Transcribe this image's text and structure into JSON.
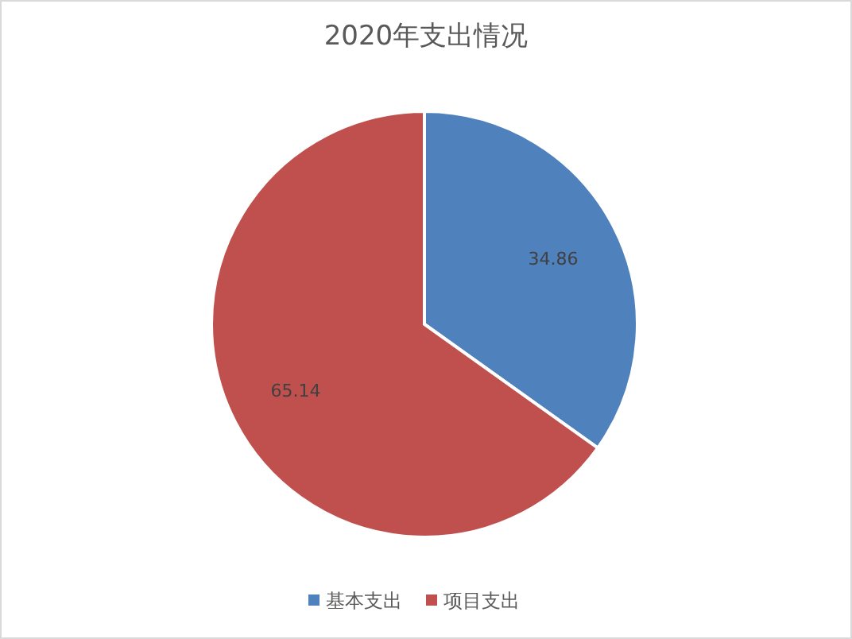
{
  "chart_data": {
    "type": "pie",
    "title": "2020年支出情况",
    "categories": [
      "基本支出",
      "项目支出"
    ],
    "values": [
      34.86,
      65.14
    ],
    "colors": [
      "#4f81bd",
      "#c0504d"
    ],
    "data_labels": true,
    "legend": "bottom"
  }
}
